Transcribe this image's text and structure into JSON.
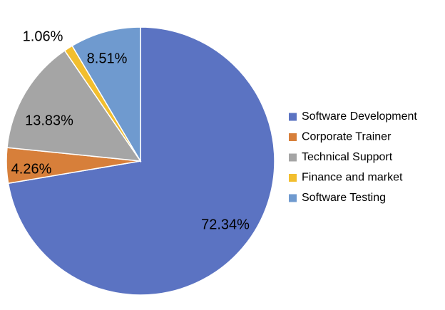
{
  "chart_data": {
    "type": "pie",
    "title": "",
    "categories": [
      "Software Development",
      "Corporate Trainer",
      "Technical Support",
      "Finance and market",
      "Software Testing"
    ],
    "values": [
      72.34,
      4.26,
      13.83,
      1.06,
      8.51
    ],
    "value_labels": [
      "72.34%",
      "4.26%",
      "13.83%",
      "1.06%",
      "8.51%"
    ],
    "colors": [
      "#5B73C2",
      "#D77F3A",
      "#A5A5A5",
      "#F2BE2E",
      "#6F9ACF"
    ],
    "start_angle": "12 o'clock",
    "direction": "clockwise",
    "legend": {
      "position": "right"
    }
  }
}
